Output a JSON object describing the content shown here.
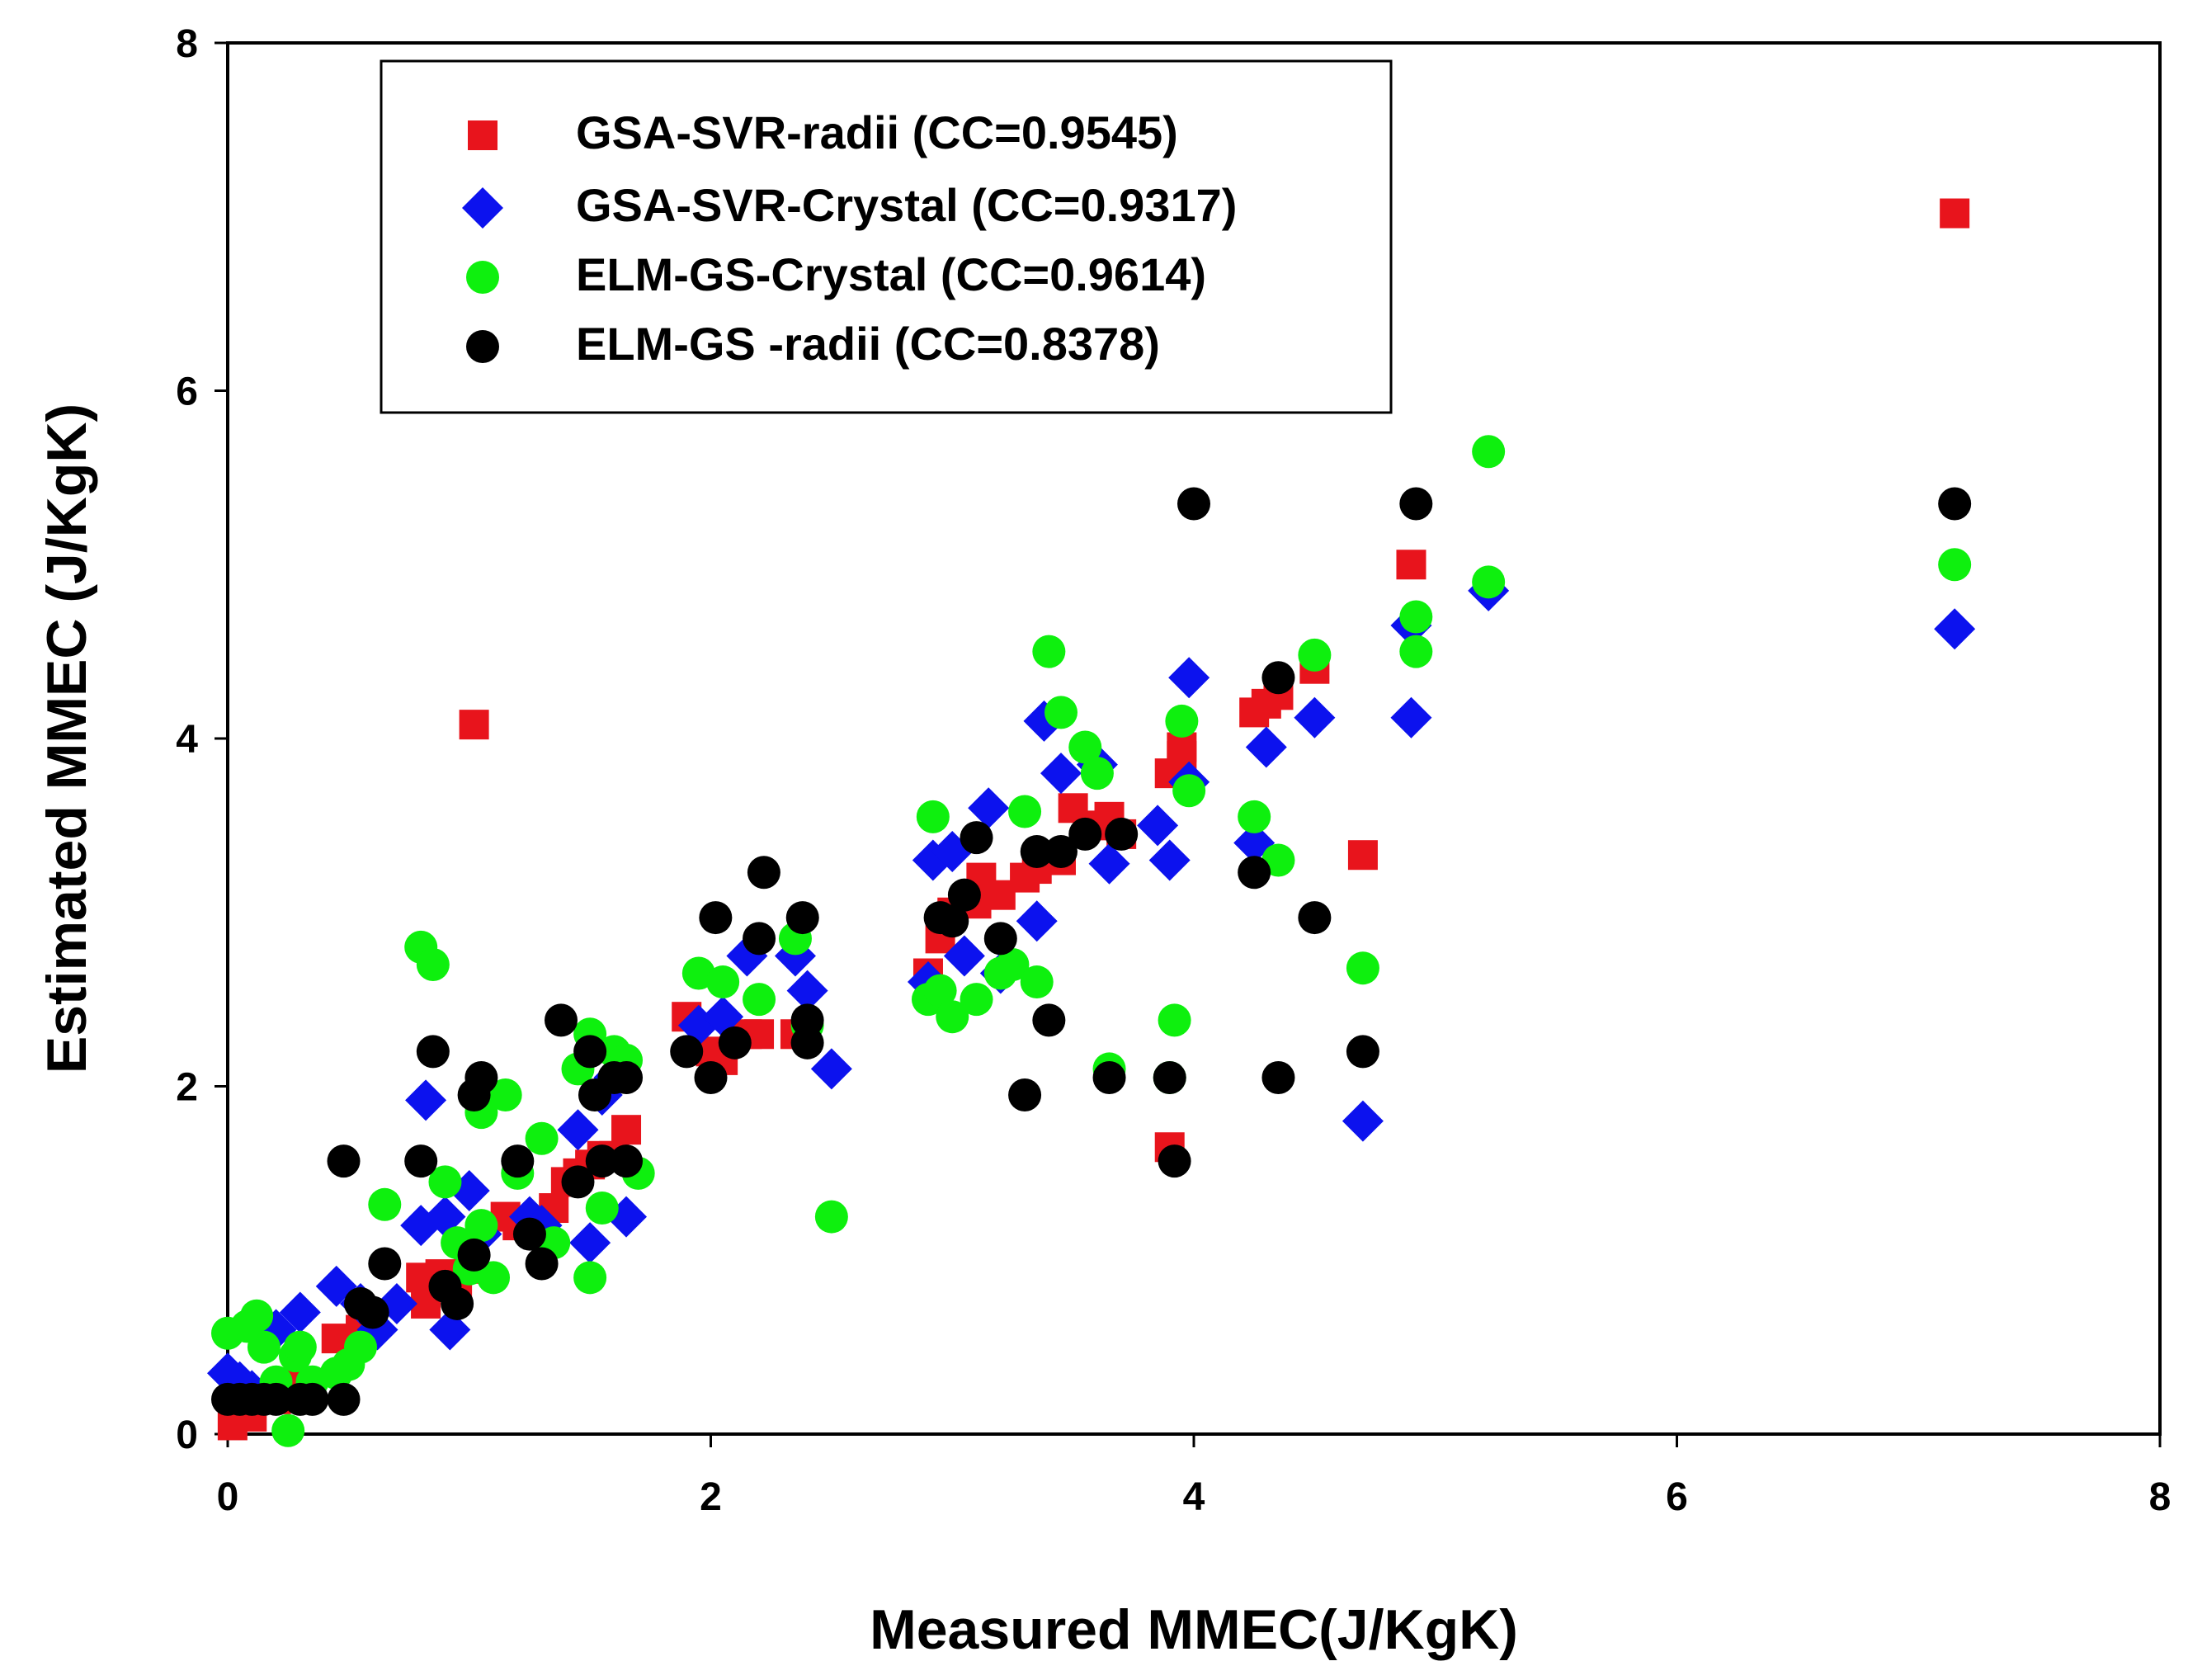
{
  "chart_data": {
    "type": "scatter",
    "title": "",
    "xlabel": "Measured MMEC(J/KgK)",
    "ylabel": "Estimated MMEC (J/KgK)",
    "xlim": [
      0,
      8
    ],
    "ylim": [
      0,
      8
    ],
    "xticks": [
      "0",
      "2",
      "4",
      "6",
      "8"
    ],
    "yticks": [
      "0",
      "2",
      "4",
      "6",
      "8"
    ],
    "grid": false,
    "legend_position": "top-left",
    "series": [
      {
        "name": "GSA-SVR-radii (CC=0.9545)",
        "marker": "square",
        "color": "#e8141c",
        "points": [
          [
            0.02,
            0.05
          ],
          [
            0.1,
            0.1
          ],
          [
            0.2,
            0.2
          ],
          [
            0.3,
            0.3
          ],
          [
            0.45,
            0.55
          ],
          [
            0.55,
            0.6
          ],
          [
            0.6,
            0.65
          ],
          [
            0.8,
            0.9
          ],
          [
            0.82,
            0.75
          ],
          [
            0.88,
            0.92
          ],
          [
            0.95,
            0.85
          ],
          [
            1.0,
            0.95
          ],
          [
            1.02,
            4.08
          ],
          [
            1.15,
            1.25
          ],
          [
            1.2,
            1.2
          ],
          [
            1.35,
            1.3
          ],
          [
            1.4,
            1.45
          ],
          [
            1.45,
            1.5
          ],
          [
            1.5,
            1.55
          ],
          [
            1.55,
            1.6
          ],
          [
            1.6,
            1.6
          ],
          [
            1.65,
            1.75
          ],
          [
            1.9,
            2.4
          ],
          [
            2.0,
            2.2
          ],
          [
            2.05,
            2.15
          ],
          [
            2.15,
            2.3
          ],
          [
            2.2,
            2.3
          ],
          [
            2.35,
            2.3
          ],
          [
            2.9,
            2.65
          ],
          [
            2.95,
            2.85
          ],
          [
            3.0,
            3.0
          ],
          [
            3.1,
            3.05
          ],
          [
            3.12,
            3.2
          ],
          [
            3.2,
            3.1
          ],
          [
            3.3,
            3.2
          ],
          [
            3.35,
            3.25
          ],
          [
            3.45,
            3.3
          ],
          [
            3.5,
            3.6
          ],
          [
            3.6,
            3.5
          ],
          [
            3.65,
            3.55
          ],
          [
            3.7,
            3.45
          ],
          [
            3.9,
            3.8
          ],
          [
            3.95,
            3.9
          ],
          [
            3.95,
            3.95
          ],
          [
            3.9,
            1.65
          ],
          [
            4.25,
            4.15
          ],
          [
            4.3,
            4.2
          ],
          [
            4.35,
            4.25
          ],
          [
            4.5,
            4.4
          ],
          [
            4.7,
            3.33
          ],
          [
            4.9,
            5.0
          ],
          [
            7.15,
            7.02
          ]
        ]
      },
      {
        "name": "GSA-SVR-Crystal (CC=0.9317)",
        "marker": "diamond",
        "color": "#0c12ee",
        "points": [
          [
            0.0,
            0.35
          ],
          [
            0.05,
            0.3
          ],
          [
            0.1,
            0.25
          ],
          [
            0.2,
            0.6
          ],
          [
            0.3,
            0.7
          ],
          [
            0.45,
            0.85
          ],
          [
            0.55,
            0.75
          ],
          [
            0.62,
            0.6
          ],
          [
            0.7,
            0.75
          ],
          [
            0.8,
            1.2
          ],
          [
            0.82,
            1.92
          ],
          [
            0.9,
            1.25
          ],
          [
            0.92,
            0.6
          ],
          [
            1.0,
            1.4
          ],
          [
            1.05,
            1.15
          ],
          [
            1.25,
            1.25
          ],
          [
            1.3,
            1.2
          ],
          [
            1.45,
            1.75
          ],
          [
            1.5,
            1.1
          ],
          [
            1.55,
            1.95
          ],
          [
            1.6,
            2.05
          ],
          [
            1.65,
            1.25
          ],
          [
            1.95,
            2.35
          ],
          [
            2.05,
            2.4
          ],
          [
            2.15,
            2.75
          ],
          [
            2.35,
            2.75
          ],
          [
            2.4,
            2.55
          ],
          [
            2.5,
            2.1
          ],
          [
            2.9,
            2.6
          ],
          [
            2.92,
            3.3
          ],
          [
            3.0,
            3.35
          ],
          [
            3.05,
            2.75
          ],
          [
            3.15,
            3.6
          ],
          [
            3.2,
            2.65
          ],
          [
            3.35,
            2.95
          ],
          [
            3.38,
            4.1
          ],
          [
            3.45,
            3.8
          ],
          [
            3.6,
            3.85
          ],
          [
            3.65,
            3.28
          ],
          [
            3.85,
            3.5
          ],
          [
            3.9,
            3.3
          ],
          [
            3.98,
            4.35
          ],
          [
            3.98,
            3.75
          ],
          [
            4.3,
            3.95
          ],
          [
            4.25,
            3.4
          ],
          [
            4.5,
            4.12
          ],
          [
            4.7,
            1.8
          ],
          [
            4.9,
            4.65
          ],
          [
            4.9,
            4.12
          ],
          [
            5.22,
            4.85
          ],
          [
            7.15,
            4.63
          ]
        ]
      },
      {
        "name": "ELM-GS-Crystal (CC=0.9614)",
        "marker": "circle",
        "color": "#0ef00e",
        "points": [
          [
            0.0,
            0.58
          ],
          [
            0.08,
            0.62
          ],
          [
            0.12,
            0.68
          ],
          [
            0.15,
            0.5
          ],
          [
            0.2,
            0.3
          ],
          [
            0.25,
            0.02
          ],
          [
            0.28,
            0.45
          ],
          [
            0.3,
            0.5
          ],
          [
            0.35,
            0.3
          ],
          [
            0.45,
            0.35
          ],
          [
            0.5,
            0.4
          ],
          [
            0.55,
            0.5
          ],
          [
            0.65,
            1.32
          ],
          [
            0.8,
            2.8
          ],
          [
            0.85,
            2.7
          ],
          [
            0.9,
            1.45
          ],
          [
            0.95,
            1.1
          ],
          [
            1.0,
            0.95
          ],
          [
            1.05,
            1.2
          ],
          [
            1.05,
            1.85
          ],
          [
            1.1,
            0.9
          ],
          [
            1.15,
            1.95
          ],
          [
            1.2,
            1.5
          ],
          [
            1.3,
            1.7
          ],
          [
            1.35,
            1.1
          ],
          [
            1.45,
            2.1
          ],
          [
            1.5,
            2.3
          ],
          [
            1.5,
            0.9
          ],
          [
            1.55,
            1.3
          ],
          [
            1.6,
            2.2
          ],
          [
            1.65,
            2.15
          ],
          [
            1.7,
            1.5
          ],
          [
            1.95,
            2.65
          ],
          [
            2.05,
            2.6
          ],
          [
            2.2,
            2.5
          ],
          [
            2.35,
            2.85
          ],
          [
            2.4,
            2.35
          ],
          [
            2.5,
            1.25
          ],
          [
            2.92,
            3.55
          ],
          [
            2.9,
            2.5
          ],
          [
            2.95,
            2.55
          ],
          [
            3.0,
            2.4
          ],
          [
            3.1,
            2.5
          ],
          [
            3.2,
            2.65
          ],
          [
            3.25,
            2.7
          ],
          [
            3.3,
            3.58
          ],
          [
            3.35,
            2.6
          ],
          [
            3.4,
            4.5
          ],
          [
            3.45,
            4.15
          ],
          [
            3.55,
            3.95
          ],
          [
            3.6,
            3.8
          ],
          [
            3.65,
            2.1
          ],
          [
            3.9,
            2.05
          ],
          [
            3.92,
            2.38
          ],
          [
            3.95,
            4.1
          ],
          [
            3.98,
            3.7
          ],
          [
            4.25,
            3.55
          ],
          [
            4.35,
            3.3
          ],
          [
            4.5,
            4.48
          ],
          [
            4.7,
            2.68
          ],
          [
            4.92,
            4.7
          ],
          [
            4.92,
            4.5
          ],
          [
            5.22,
            4.9
          ],
          [
            5.22,
            5.65
          ],
          [
            7.15,
            5.0
          ]
        ]
      },
      {
        "name": "ELM-GS -radii (CC=0.8378)",
        "marker": "circle",
        "color": "#000000",
        "points": [
          [
            0.0,
            0.2
          ],
          [
            0.05,
            0.2
          ],
          [
            0.1,
            0.2
          ],
          [
            0.15,
            0.2
          ],
          [
            0.2,
            0.2
          ],
          [
            0.3,
            0.2
          ],
          [
            0.35,
            0.2
          ],
          [
            0.48,
            0.2
          ],
          [
            0.48,
            1.57
          ],
          [
            0.55,
            0.75
          ],
          [
            0.6,
            0.7
          ],
          [
            0.65,
            0.98
          ],
          [
            0.8,
            1.57
          ],
          [
            0.85,
            2.2
          ],
          [
            0.9,
            0.85
          ],
          [
            0.95,
            0.75
          ],
          [
            1.02,
            1.03
          ],
          [
            1.02,
            1.95
          ],
          [
            1.05,
            2.05
          ],
          [
            1.2,
            1.57
          ],
          [
            1.25,
            1.15
          ],
          [
            1.3,
            0.98
          ],
          [
            1.38,
            2.38
          ],
          [
            1.45,
            1.45
          ],
          [
            1.5,
            2.2
          ],
          [
            1.52,
            1.95
          ],
          [
            1.55,
            1.57
          ],
          [
            1.6,
            2.05
          ],
          [
            1.65,
            1.57
          ],
          [
            1.65,
            2.05
          ],
          [
            1.9,
            2.2
          ],
          [
            2.0,
            2.05
          ],
          [
            2.02,
            2.97
          ],
          [
            2.1,
            2.25
          ],
          [
            2.2,
            2.85
          ],
          [
            2.22,
            3.23
          ],
          [
            2.38,
            2.97
          ],
          [
            2.4,
            2.25
          ],
          [
            2.4,
            2.38
          ],
          [
            2.95,
            2.97
          ],
          [
            3.0,
            2.95
          ],
          [
            3.05,
            3.1
          ],
          [
            3.1,
            3.43
          ],
          [
            3.2,
            2.85
          ],
          [
            3.3,
            1.95
          ],
          [
            3.35,
            3.35
          ],
          [
            3.4,
            2.38
          ],
          [
            3.45,
            3.35
          ],
          [
            3.55,
            3.45
          ],
          [
            3.65,
            2.05
          ],
          [
            3.7,
            3.45
          ],
          [
            3.9,
            2.05
          ],
          [
            3.92,
            1.57
          ],
          [
            4.0,
            5.35
          ],
          [
            4.25,
            3.23
          ],
          [
            4.35,
            2.05
          ],
          [
            4.35,
            4.35
          ],
          [
            4.5,
            2.97
          ],
          [
            4.7,
            2.2
          ],
          [
            4.92,
            5.35
          ],
          [
            7.15,
            5.35
          ]
        ]
      }
    ]
  }
}
